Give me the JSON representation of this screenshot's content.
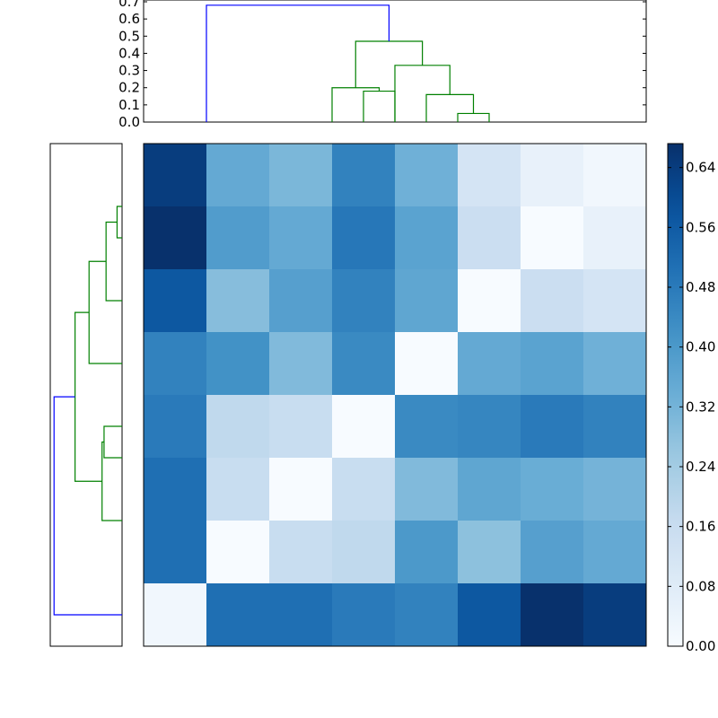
{
  "chart_data": {
    "type": "heatmap",
    "title": "",
    "xlabel": "",
    "ylabel": "",
    "matrix": [
      [
        0.64,
        0.35,
        0.31,
        0.46,
        0.33,
        0.12,
        0.05,
        0.02
      ],
      [
        0.67,
        0.39,
        0.35,
        0.49,
        0.37,
        0.15,
        0.0,
        0.05
      ],
      [
        0.57,
        0.29,
        0.38,
        0.46,
        0.36,
        0.0,
        0.15,
        0.12
      ],
      [
        0.46,
        0.42,
        0.3,
        0.44,
        0.0,
        0.35,
        0.37,
        0.33
      ],
      [
        0.48,
        0.18,
        0.16,
        0.0,
        0.44,
        0.45,
        0.48,
        0.46
      ],
      [
        0.51,
        0.16,
        0.0,
        0.16,
        0.3,
        0.36,
        0.34,
        0.32
      ],
      [
        0.51,
        0.0,
        0.16,
        0.18,
        0.4,
        0.28,
        0.38,
        0.35
      ],
      [
        0.02,
        0.51,
        0.51,
        0.48,
        0.46,
        0.57,
        0.67,
        0.64
      ]
    ],
    "colormap": "Blues",
    "vmin": 0.0,
    "vmax": 0.672,
    "colorbar_ticks": [
      "0.00",
      "0.08",
      "0.16",
      "0.24",
      "0.32",
      "0.40",
      "0.48",
      "0.56",
      "0.64"
    ],
    "top_dendrogram": {
      "ylim": [
        0,
        0.7
      ],
      "yticks": [
        "0.0",
        "0.1",
        "0.2",
        "0.3",
        "0.4",
        "0.5",
        "0.6",
        "0.7"
      ],
      "links": [
        {
          "left": 0.5,
          "right": 1.0,
          "h": 0.05,
          "level_left": 0,
          "level_right": 0,
          "color": "#008000"
        },
        {
          "left": 0.0,
          "right": 0.75,
          "h": 0.16,
          "level_left": 0,
          "level_right": 0.05,
          "color": "#008000"
        },
        {
          "left": -1.0,
          "right": -0.5,
          "h": 0.18,
          "level_left": 0,
          "level_right": 0,
          "color": "#008000"
        },
        {
          "left": -1.5,
          "right": -0.75,
          "h": 0.2,
          "level_left": 0,
          "level_right": 0.18,
          "color": "#008000"
        },
        {
          "left": -0.5,
          "right": 0.375,
          "h": 0.33,
          "level_left": 0,
          "level_right": 0.16,
          "color": "#008000"
        },
        {
          "left": -1.125,
          "right": -0.0625,
          "h": 0.47,
          "level_left": 0.2,
          "level_right": 0.33,
          "color": "#008000"
        },
        {
          "left": -3.5,
          "right": -0.59375,
          "h": 0.68,
          "level_left": 0,
          "level_right": 0.47,
          "color": "#0000ff"
        }
      ]
    },
    "left_dendrogram": {
      "links": [
        {
          "a": 0.5,
          "b": 1.0,
          "h": 0.05,
          "la": 0,
          "lb": 0,
          "color": "#008000"
        },
        {
          "a": 0.75,
          "b": 2.0,
          "h": 0.16,
          "la": 0.05,
          "lb": 0,
          "color": "#008000"
        },
        {
          "a": 1.375,
          "b": 3.0,
          "h": 0.33,
          "la": 0.16,
          "lb": 0,
          "color": "#008000"
        },
        {
          "a": 4.0,
          "b": 4.5,
          "h": 0.18,
          "la": 0,
          "lb": 0,
          "color": "#008000"
        },
        {
          "a": 4.25,
          "b": 5.5,
          "h": 0.2,
          "la": 0.18,
          "lb": 0,
          "color": "#008000"
        },
        {
          "a": 2.1875,
          "b": 4.875,
          "h": 0.47,
          "la": 0.33,
          "lb": 0.2,
          "color": "#008000"
        },
        {
          "a": 3.53,
          "b": 7.0,
          "h": 0.68,
          "la": 0.47,
          "lb": 0,
          "color": "#0000ff"
        }
      ]
    }
  }
}
